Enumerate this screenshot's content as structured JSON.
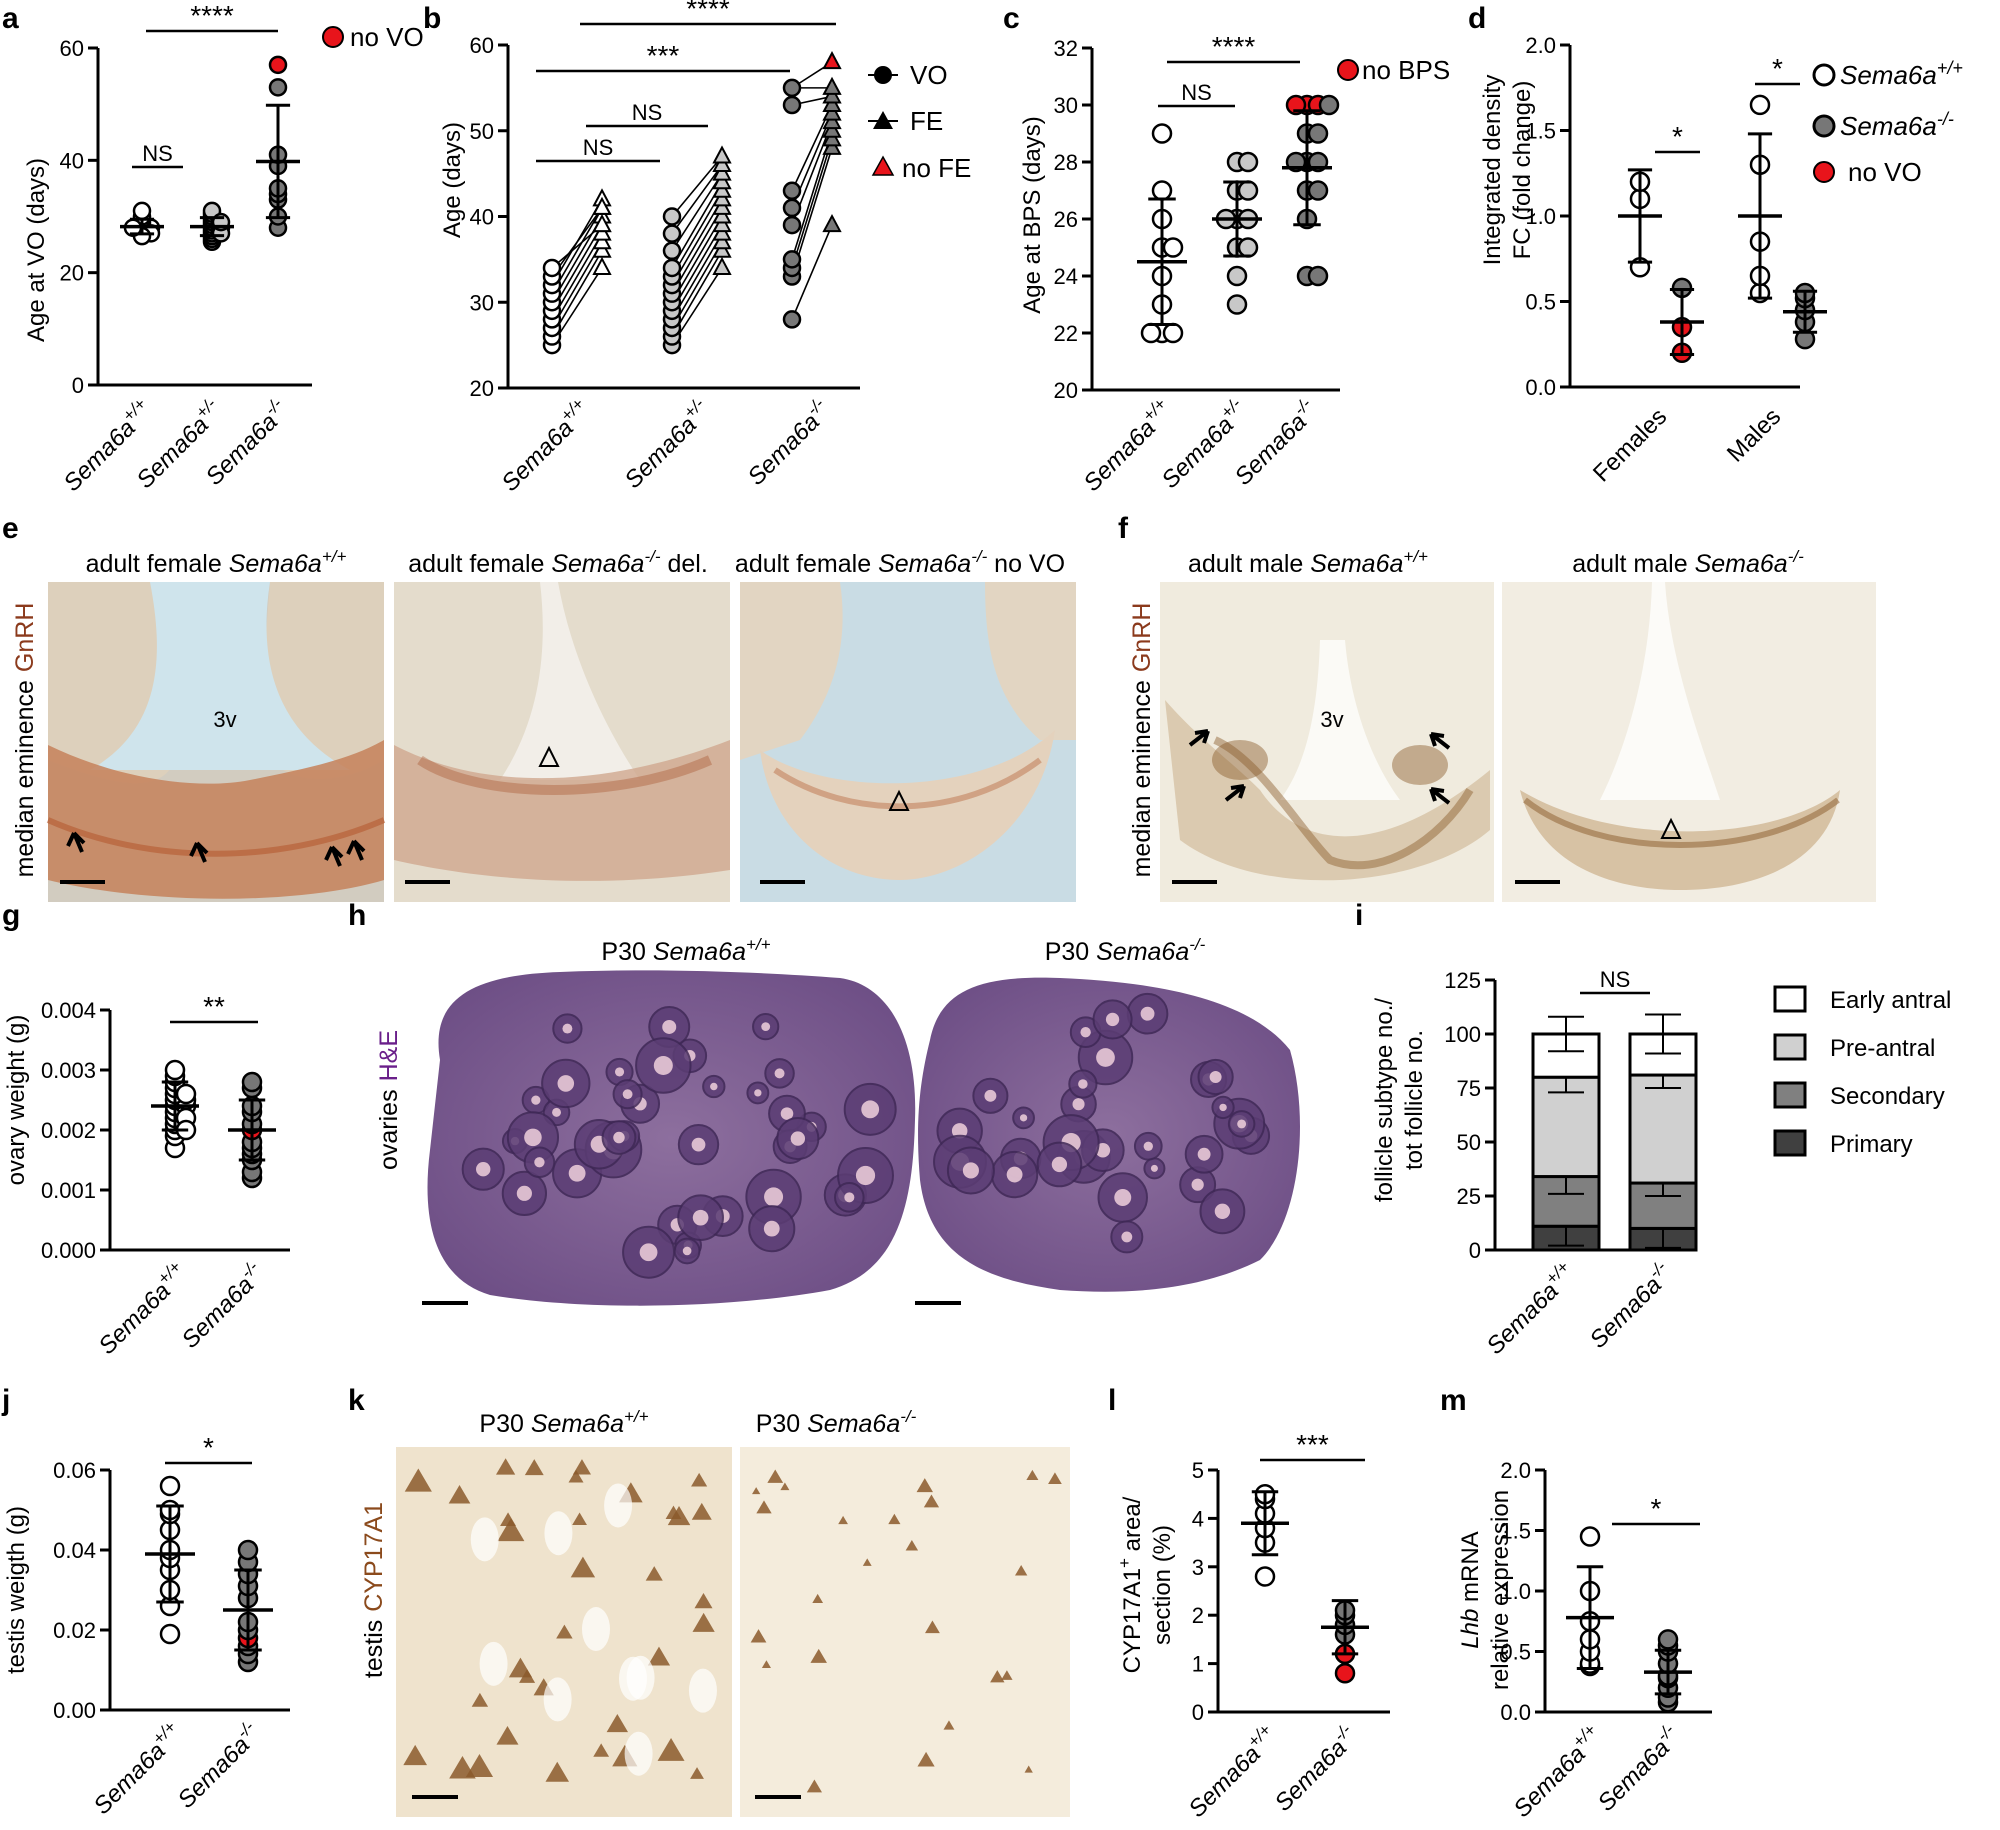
{
  "genotypes": {
    "wt": "Sema6a",
    "wt_sup": "+/+",
    "het": "Sema6a",
    "het_sup": "+/-",
    "ko": "Sema6a",
    "ko_sup": "-/-"
  },
  "panels": {
    "a": {
      "label": "a",
      "ylabel": "Age at VO (days)",
      "legend_novo": "no VO",
      "sig_ns": "NS",
      "sig_main": "****"
    },
    "b": {
      "label": "b",
      "ylabel": "Age (days)",
      "legend_vo": "VO",
      "legend_fe": "FE",
      "legend_nofe": "no FE",
      "sig_top": "****",
      "sig_mid": "***",
      "ns1": "NS",
      "ns2": "NS"
    },
    "c": {
      "label": "c",
      "ylabel": "Age at BPS (days)",
      "legend_nobps": "no BPS",
      "sig_ns": "NS",
      "sig_main": "****"
    },
    "d": {
      "label": "d",
      "ylabel1": "Integrated density",
      "ylabel2": "FC (fold change)",
      "cat_f": "Females",
      "cat_m": "Males",
      "sig_f": "*",
      "sig_m": "*",
      "legend_novo": "no VO"
    },
    "e": {
      "label": "e",
      "side1": "median eminence",
      "side2": "GnRH",
      "t1_pre": "adult female ",
      "t2_pre": "adult female ",
      "t2_post": " del.",
      "t3_pre": "adult female ",
      "t3_post": " no VO",
      "v3": "3v"
    },
    "f": {
      "label": "f",
      "side1": "median eminence",
      "side2": "GnRH",
      "t1_pre": "adult male ",
      "t2_pre": "adult male ",
      "v3": "3v"
    },
    "g": {
      "label": "g",
      "ylabel": "ovary weight (g)",
      "sig": "**"
    },
    "h": {
      "label": "h",
      "side1": "ovaries",
      "side2": "H&E",
      "t1_pre": "P30 ",
      "t2_pre": "P30 "
    },
    "i": {
      "label": "i",
      "ylabel1": "follicle subtype no./",
      "ylabel2": "tot follicle no.",
      "sig": "NS",
      "legend": [
        "Early antral",
        "Pre-antral",
        "Secondary",
        "Primary"
      ]
    },
    "j": {
      "label": "j",
      "ylabel": "testis weigth (g)",
      "sig": "*"
    },
    "k": {
      "label": "k",
      "side1": "testis",
      "side2": "CYP17A1",
      "t1_pre": "P30 ",
      "t2_pre": "P30 "
    },
    "l": {
      "label": "l",
      "ylabel1a": "CYP17A1",
      "ylabel1sup": "+",
      "ylabel1b": " area/",
      "ylabel2": "section (%)",
      "sig": "***"
    },
    "m": {
      "label": "m",
      "ylabel1a": "Lhb",
      "ylabel1b": " mRNA",
      "ylabel2": "relative expression",
      "sig": "*"
    }
  },
  "chart_data": [
    {
      "panel": "a",
      "type": "scatter",
      "ylabel": "Age at VO (days)",
      "ylim": [
        0,
        60
      ],
      "yticks": [
        0,
        20,
        40,
        60
      ],
      "categories": [
        "Sema6a+/+",
        "Sema6a+/-",
        "Sema6a-/-"
      ],
      "groups": [
        {
          "values": [
            27,
            27.5,
            28,
            28,
            28.5,
            29,
            29.5,
            30,
            31,
            27,
            26.5,
            28
          ],
          "mean": 28.2,
          "sd": 1.3
        },
        {
          "values": [
            25.5,
            26,
            26.5,
            27,
            27.5,
            28,
            28,
            28.5,
            29,
            29.5,
            30,
            30.5,
            31,
            27,
            29
          ],
          "mean": 28.2,
          "sd": 1.6
        },
        {
          "values": [
            28,
            30,
            33,
            34,
            35,
            39,
            41,
            53,
            57
          ],
          "mean": 39.8,
          "sd": 10,
          "no_vo": [
            45,
            57
          ]
        }
      ]
    },
    {
      "panel": "b",
      "type": "scatter",
      "ylabel": "Age (days)",
      "ylim": [
        20,
        60
      ],
      "yticks": [
        20,
        30,
        40,
        50,
        60
      ],
      "categories": [
        "Sema6a+/+",
        "Sema6a+/-",
        "Sema6a-/-"
      ],
      "groups": [
        {
          "vo": [
            25,
            26,
            27,
            28,
            29,
            30,
            31,
            32,
            33,
            34
          ],
          "fe": [
            34,
            36,
            37,
            38,
            39,
            40,
            41,
            42,
            41,
            39
          ]
        },
        {
          "vo": [
            25,
            26,
            27,
            28,
            29,
            30,
            31,
            32,
            33,
            34,
            36,
            38,
            40
          ],
          "fe": [
            34,
            36,
            37,
            38,
            39,
            40,
            41,
            42,
            43,
            44,
            45,
            46,
            47
          ]
        },
        {
          "vo": [
            28,
            33,
            34,
            35,
            39,
            41,
            43,
            53,
            55
          ],
          "fe": [
            39,
            48,
            49,
            50,
            51,
            52,
            53,
            54,
            55
          ],
          "no_fe": [
            58
          ]
        }
      ]
    },
    {
      "panel": "c",
      "type": "scatter",
      "ylabel": "Age at BPS (days)",
      "ylim": [
        20,
        32
      ],
      "yticks": [
        20,
        22,
        24,
        26,
        28,
        30,
        32
      ],
      "categories": [
        "Sema6a+/+",
        "Sema6a+/-",
        "Sema6a-/-"
      ],
      "groups": [
        {
          "values": [
            22,
            22,
            22,
            23,
            24,
            25,
            25,
            26,
            27,
            29
          ],
          "mean": 24.5,
          "sd": 2.2
        },
        {
          "values": [
            23,
            24,
            25,
            25,
            26,
            26,
            26,
            27,
            27,
            28,
            28
          ],
          "mean": 26.0,
          "sd": 1.3
        },
        {
          "values": [
            24,
            24,
            26,
            27,
            27,
            28,
            28,
            28,
            29,
            29,
            30,
            30,
            30,
            30
          ],
          "mean": 27.8,
          "sd": 2.0,
          "no_bps": [
            30,
            30,
            30
          ]
        }
      ]
    },
    {
      "panel": "d",
      "type": "scatter",
      "ylabel": "Integrated density FC (fold change)",
      "ylim": [
        0,
        2
      ],
      "yticks": [
        0.0,
        0.5,
        1.0,
        1.5,
        2.0
      ],
      "categories": [
        "Females",
        "Males"
      ],
      "series": [
        {
          "name": "Sema6a+/+",
          "groups": [
            [
              0.7,
              1.1,
              1.2
            ],
            [
              0.55,
              0.65,
              0.85,
              1.3,
              1.65
            ]
          ],
          "means": [
            1.0,
            1.0
          ],
          "sds": [
            0.27,
            0.48
          ]
        },
        {
          "name": "Sema6a-/-",
          "groups": [
            [
              0.2,
              0.35,
              0.58
            ],
            [
              0.28,
              0.38,
              0.45,
              0.52,
              0.55
            ]
          ],
          "means": [
            0.38,
            0.44
          ],
          "sds": [
            0.19,
            0.12
          ],
          "no_vo": [
            0.2,
            0.35
          ]
        }
      ]
    },
    {
      "panel": "g",
      "type": "scatter",
      "ylabel": "ovary weight (g)",
      "ylim": [
        0,
        0.004
      ],
      "yticks": [
        "0.000",
        "0.001",
        "0.002",
        "0.003",
        "0.004"
      ],
      "categories": [
        "Sema6a+/+",
        "Sema6a-/-"
      ],
      "groups": [
        {
          "values": [
            0.0017,
            0.0019,
            0.002,
            0.0021,
            0.0022,
            0.0023,
            0.0024,
            0.0024,
            0.0025,
            0.0025,
            0.0026,
            0.0027,
            0.0028,
            0.0029,
            0.003,
            0.0022,
            0.0026,
            0.002
          ],
          "mean": 0.0024,
          "sd": 0.0004
        },
        {
          "values": [
            0.0012,
            0.0013,
            0.0015,
            0.0016,
            0.0017,
            0.0018,
            0.002,
            0.0021,
            0.0023,
            0.0024,
            0.0027,
            0.0028
          ],
          "mean": 0.002,
          "sd": 0.0005,
          "no_vo": [
            0.002
          ]
        }
      ]
    },
    {
      "panel": "i",
      "type": "bar",
      "stacked": true,
      "ylabel": "follicle subtype no./tot follicle no.",
      "ylim": [
        0,
        125
      ],
      "yticks": [
        0,
        25,
        50,
        75,
        100,
        125
      ],
      "categories": [
        "Sema6a+/+",
        "Sema6a-/-"
      ],
      "series": [
        {
          "name": "Primary",
          "values": [
            11,
            10
          ],
          "err": [
            9,
            9
          ]
        },
        {
          "name": "Secondary",
          "values": [
            23,
            21
          ],
          "err": [
            8,
            6
          ]
        },
        {
          "name": "Pre-antral",
          "values": [
            46,
            50
          ],
          "err": [
            7,
            6
          ]
        },
        {
          "name": "Early antral",
          "values": [
            20,
            19
          ],
          "err": [
            8,
            9
          ]
        }
      ]
    },
    {
      "panel": "j",
      "type": "scatter",
      "ylabel": "testis weigth (g)",
      "ylim": [
        0,
        0.06
      ],
      "yticks": [
        "0.00",
        "0.02",
        "0.04",
        "0.06"
      ],
      "categories": [
        "Sema6a+/+",
        "Sema6a-/-"
      ],
      "groups": [
        {
          "values": [
            0.019,
            0.026,
            0.03,
            0.035,
            0.038,
            0.04,
            0.045,
            0.049,
            0.05,
            0.056
          ],
          "mean": 0.039,
          "sd": 0.012
        },
        {
          "values": [
            0.012,
            0.014,
            0.016,
            0.018,
            0.02,
            0.022,
            0.028,
            0.031,
            0.034,
            0.037,
            0.04
          ],
          "mean": 0.025,
          "sd": 0.01,
          "no_vo": [
            0.018
          ]
        }
      ]
    },
    {
      "panel": "l",
      "type": "scatter",
      "ylabel": "CYP17A1+ area/section (%)",
      "ylim": [
        0,
        5
      ],
      "yticks": [
        0,
        1,
        2,
        3,
        4,
        5
      ],
      "categories": [
        "Sema6a+/+",
        "Sema6a-/-"
      ],
      "groups": [
        {
          "values": [
            2.8,
            3.5,
            3.8,
            4.1,
            4.4,
            4.5
          ],
          "mean": 3.9,
          "sd": 0.65
        },
        {
          "values": [
            0.8,
            1.2,
            1.6,
            1.8,
            2.0,
            2.1
          ],
          "mean": 1.75,
          "sd": 0.55,
          "no_vo": [
            0.8,
            1.2
          ]
        }
      ]
    },
    {
      "panel": "m",
      "type": "scatter",
      "ylabel": "Lhb mRNA relative expression",
      "ylim": [
        0,
        2
      ],
      "yticks": [
        "0.0",
        "0.5",
        "1.0",
        "1.5",
        "2.0"
      ],
      "categories": [
        "Sema6a+/+",
        "Sema6a-/-"
      ],
      "groups": [
        {
          "values": [
            0.38,
            0.4,
            0.5,
            0.6,
            0.75,
            1.0,
            1.45
          ],
          "mean": 0.78,
          "sd": 0.42
        },
        {
          "values": [
            0.08,
            0.12,
            0.2,
            0.28,
            0.3,
            0.4,
            0.5,
            0.55,
            0.6
          ],
          "mean": 0.33,
          "sd": 0.18
        }
      ]
    }
  ],
  "colors": {
    "wt_fill": "#ffffff",
    "het_fill": "#c8c8c8",
    "ko_fill": "#777777",
    "novo": "#e8141b",
    "gnrh": "#8b3a1c",
    "he": "#6a1f8a",
    "cyp": "#8b4a1c",
    "early_antral": "#ffffff",
    "pre_antral": "#d0d0d0",
    "secondary": "#808080",
    "primary": "#404040"
  }
}
